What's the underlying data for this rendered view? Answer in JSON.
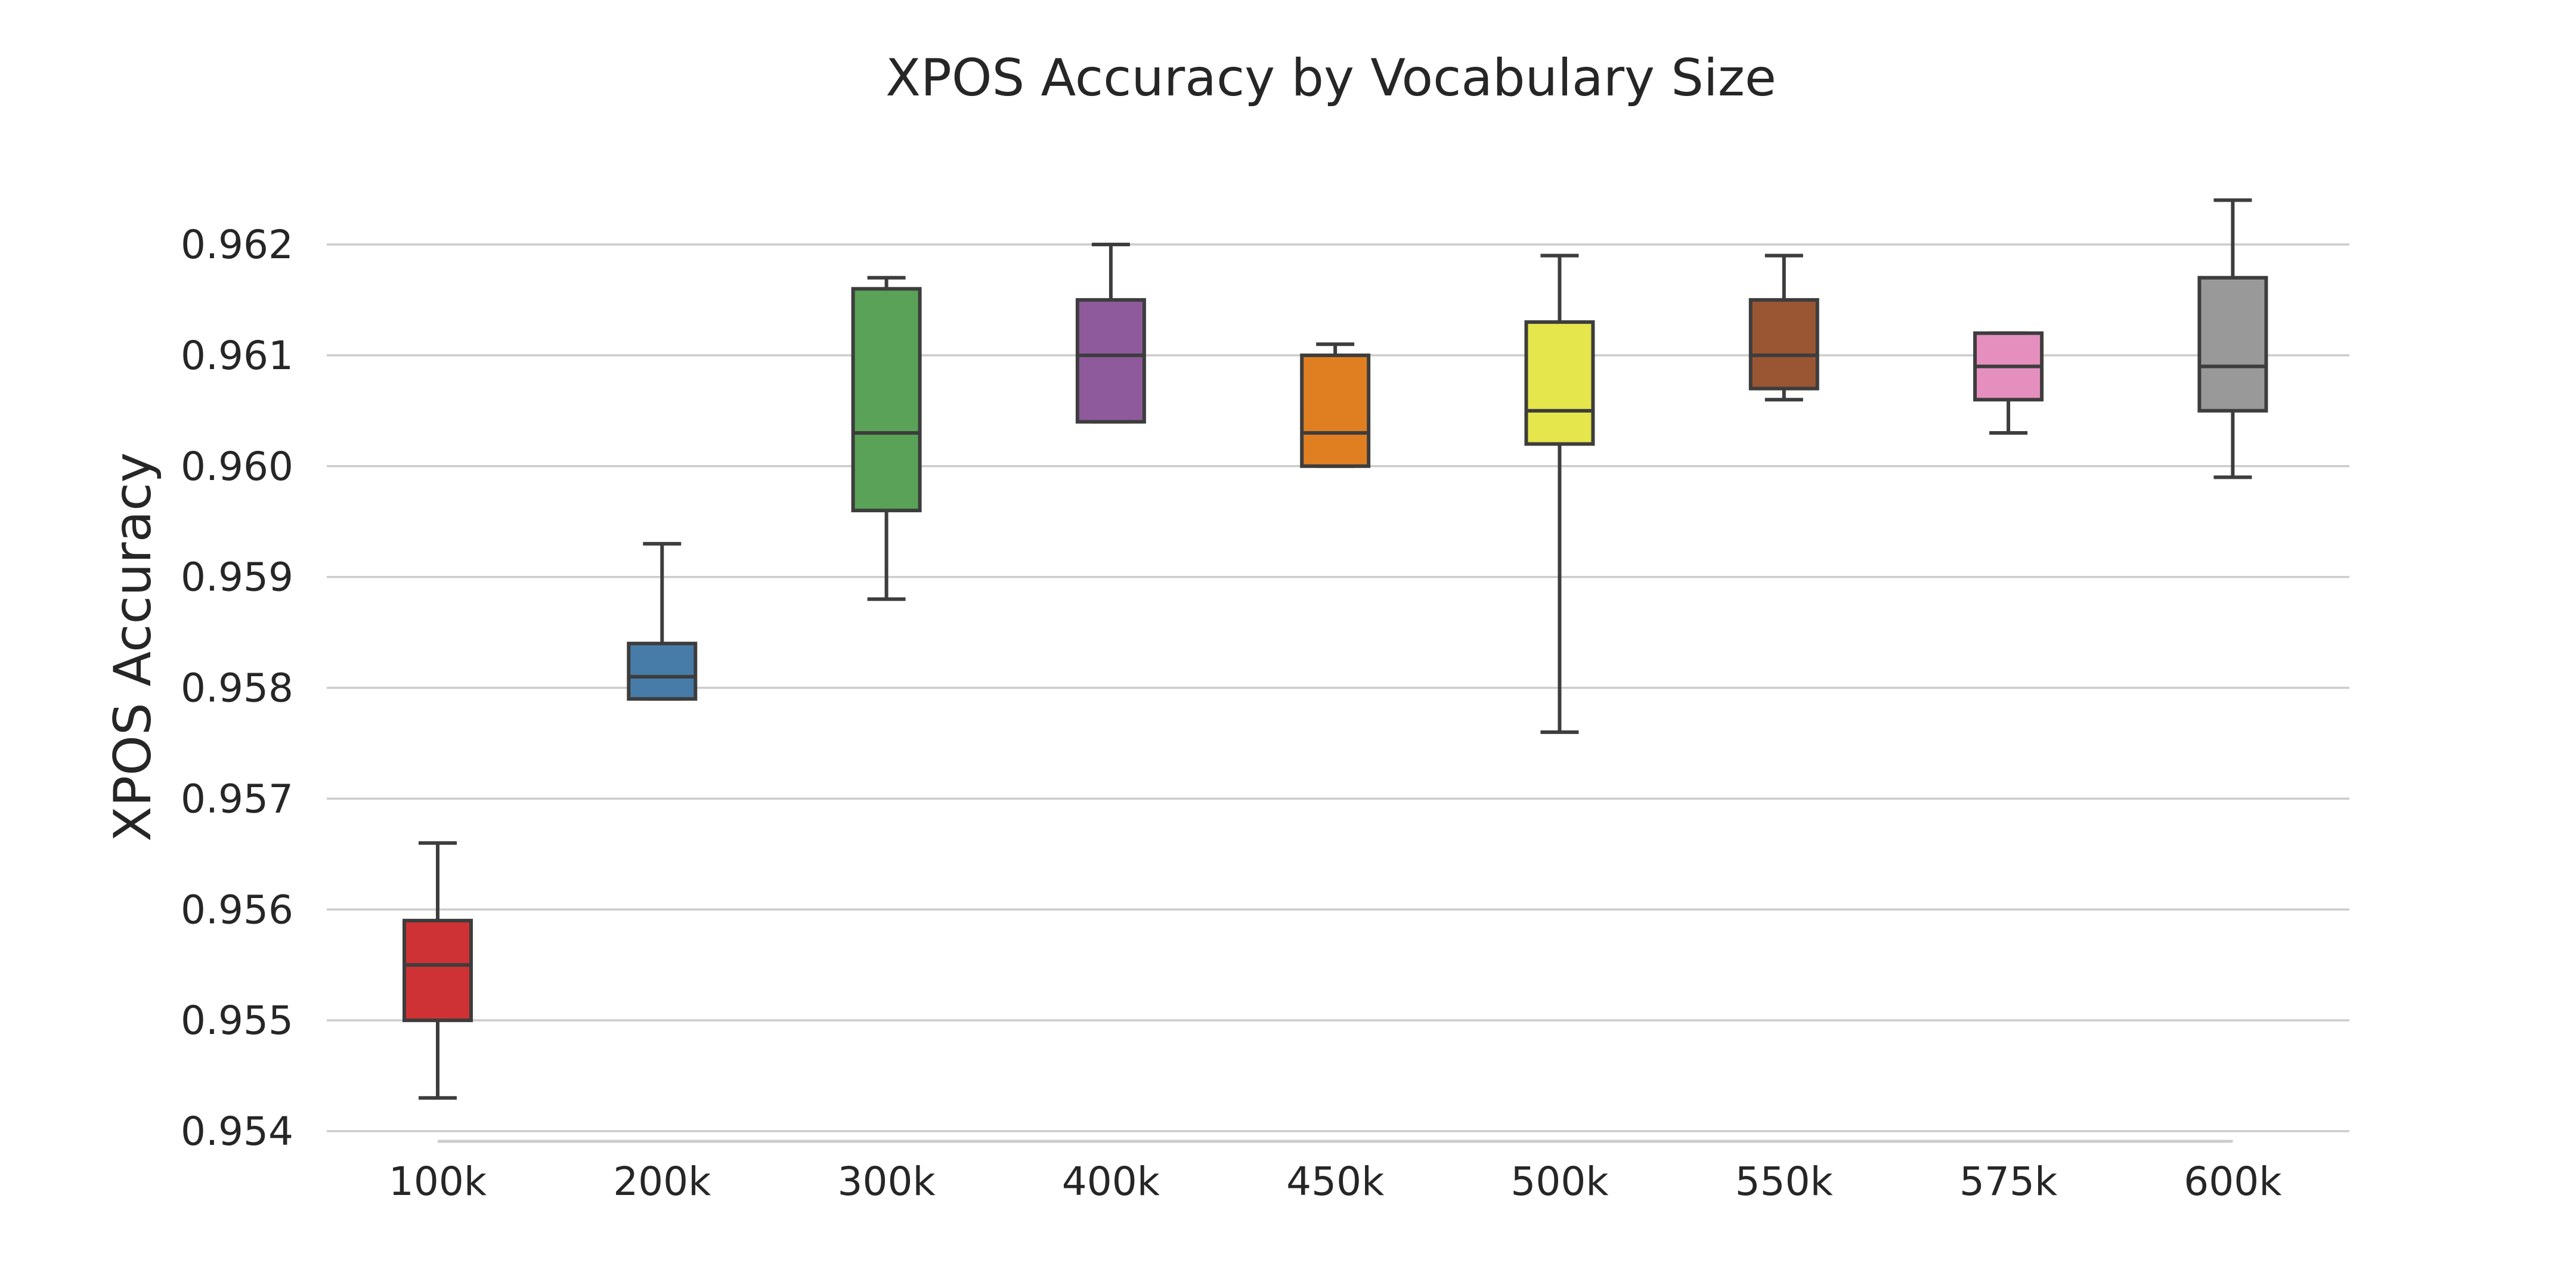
{
  "chart_data": {
    "type": "box",
    "title": "XPOS Accuracy by Vocabulary Size",
    "xlabel": "",
    "ylabel": "XPOS Accuracy",
    "ylim": [
      0.954,
      0.962
    ],
    "yticks": [
      0.954,
      0.955,
      0.956,
      0.957,
      0.958,
      0.959,
      0.96,
      0.961,
      0.962
    ],
    "ytick_labels": [
      "0.954",
      "0.955",
      "0.956",
      "0.957",
      "0.958",
      "0.959",
      "0.960",
      "0.961",
      "0.962"
    ],
    "grid": "horizontal",
    "categories": [
      "100k",
      "200k",
      "300k",
      "400k",
      "450k",
      "500k",
      "550k",
      "575k",
      "600k"
    ],
    "boxes": [
      {
        "category": "100k",
        "min": 0.9543,
        "q1": 0.955,
        "median": 0.9555,
        "q3": 0.9559,
        "max": 0.9566,
        "color": "#cf3234"
      },
      {
        "category": "200k",
        "min": 0.9579,
        "q1": 0.9579,
        "median": 0.9581,
        "q3": 0.9584,
        "max": 0.9593,
        "color": "#477ca8"
      },
      {
        "category": "300k",
        "min": 0.9588,
        "q1": 0.9596,
        "median": 0.9603,
        "q3": 0.9616,
        "max": 0.9617,
        "color": "#59a257"
      },
      {
        "category": "400k",
        "min": 0.9604,
        "q1": 0.9604,
        "median": 0.961,
        "q3": 0.9615,
        "max": 0.962,
        "color": "#8e5a9c"
      },
      {
        "category": "450k",
        "min": 0.96,
        "q1": 0.96,
        "median": 0.9603,
        "q3": 0.961,
        "max": 0.9611,
        "color": "#e07f21"
      },
      {
        "category": "500k",
        "min": 0.9576,
        "q1": 0.9602,
        "median": 0.9605,
        "q3": 0.9613,
        "max": 0.9619,
        "color": "#e5e54c"
      },
      {
        "category": "550k",
        "min": 0.9606,
        "q1": 0.9607,
        "median": 0.961,
        "q3": 0.9615,
        "max": 0.9619,
        "color": "#9a5632"
      },
      {
        "category": "575k",
        "min": 0.9603,
        "q1": 0.9606,
        "median": 0.9609,
        "q3": 0.9612,
        "max": 0.9612,
        "color": "#e58fbf"
      },
      {
        "category": "600k",
        "min": 0.9599,
        "q1": 0.9605,
        "median": 0.9609,
        "q3": 0.9617,
        "max": 0.9624,
        "color": "#999999"
      }
    ]
  }
}
